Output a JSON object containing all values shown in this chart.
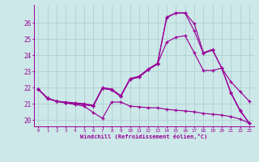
{
  "bg_color": "#cce8e8",
  "line_color": "#990099",
  "grid_color": "#aacccc",
  "xlabel": "Windchill (Refroidissement éolien,°C)",
  "x_ticks": [
    0,
    1,
    2,
    3,
    4,
    5,
    6,
    7,
    8,
    9,
    10,
    11,
    12,
    13,
    14,
    15,
    16,
    17,
    18,
    19,
    20,
    21,
    22,
    23
  ],
  "y_ticks": [
    20,
    21,
    22,
    23,
    24,
    25,
    26
  ],
  "x_min": -0.5,
  "x_max": 23.5,
  "y_min": 19.6,
  "y_max": 27.1,
  "s1_x": [
    0,
    1,
    2,
    3,
    4,
    5,
    6,
    7,
    8,
    9,
    10,
    11,
    12,
    13,
    14,
    15,
    16,
    17,
    18,
    19,
    20,
    21,
    22,
    23
  ],
  "s1_y": [
    21.9,
    21.3,
    21.15,
    21.05,
    20.95,
    20.85,
    20.45,
    20.1,
    21.1,
    21.1,
    20.85,
    20.8,
    20.75,
    20.75,
    20.65,
    20.6,
    20.55,
    20.5,
    20.4,
    20.35,
    20.3,
    20.2,
    20.05,
    19.8
  ],
  "s2_x": [
    0,
    1,
    2,
    3,
    4,
    5,
    6,
    7,
    8,
    9,
    10,
    11,
    12,
    13,
    14,
    15,
    16,
    17,
    18,
    19,
    20,
    21,
    22,
    23
  ],
  "s2_y": [
    21.9,
    21.35,
    21.15,
    21.05,
    21.0,
    20.95,
    20.85,
    21.95,
    21.85,
    21.45,
    22.5,
    22.65,
    23.1,
    23.45,
    26.3,
    26.6,
    26.6,
    25.5,
    24.1,
    24.3,
    23.2,
    21.65,
    20.55,
    19.8
  ],
  "s3_x": [
    0,
    1,
    2,
    3,
    4,
    5,
    6,
    7,
    8,
    9,
    10,
    11,
    12,
    13,
    14,
    15,
    16,
    17,
    18,
    19,
    20,
    21,
    22,
    23
  ],
  "s3_y": [
    21.9,
    21.35,
    21.15,
    21.05,
    21.0,
    20.95,
    20.85,
    21.95,
    21.85,
    21.45,
    22.5,
    22.65,
    23.1,
    23.45,
    24.8,
    25.1,
    25.2,
    24.15,
    23.05,
    23.05,
    23.2,
    22.35,
    21.75,
    21.15
  ],
  "s4_x": [
    0,
    1,
    2,
    3,
    4,
    5,
    6,
    7,
    8,
    9,
    10,
    11,
    12,
    13,
    14,
    15,
    16,
    17,
    18,
    19,
    20,
    21,
    22,
    23
  ],
  "s4_y": [
    21.9,
    21.35,
    21.15,
    21.1,
    21.05,
    21.0,
    20.9,
    22.0,
    21.9,
    21.5,
    22.55,
    22.7,
    23.15,
    23.5,
    26.35,
    26.6,
    26.6,
    25.95,
    24.15,
    24.35,
    23.2,
    21.7,
    20.6,
    19.8
  ]
}
